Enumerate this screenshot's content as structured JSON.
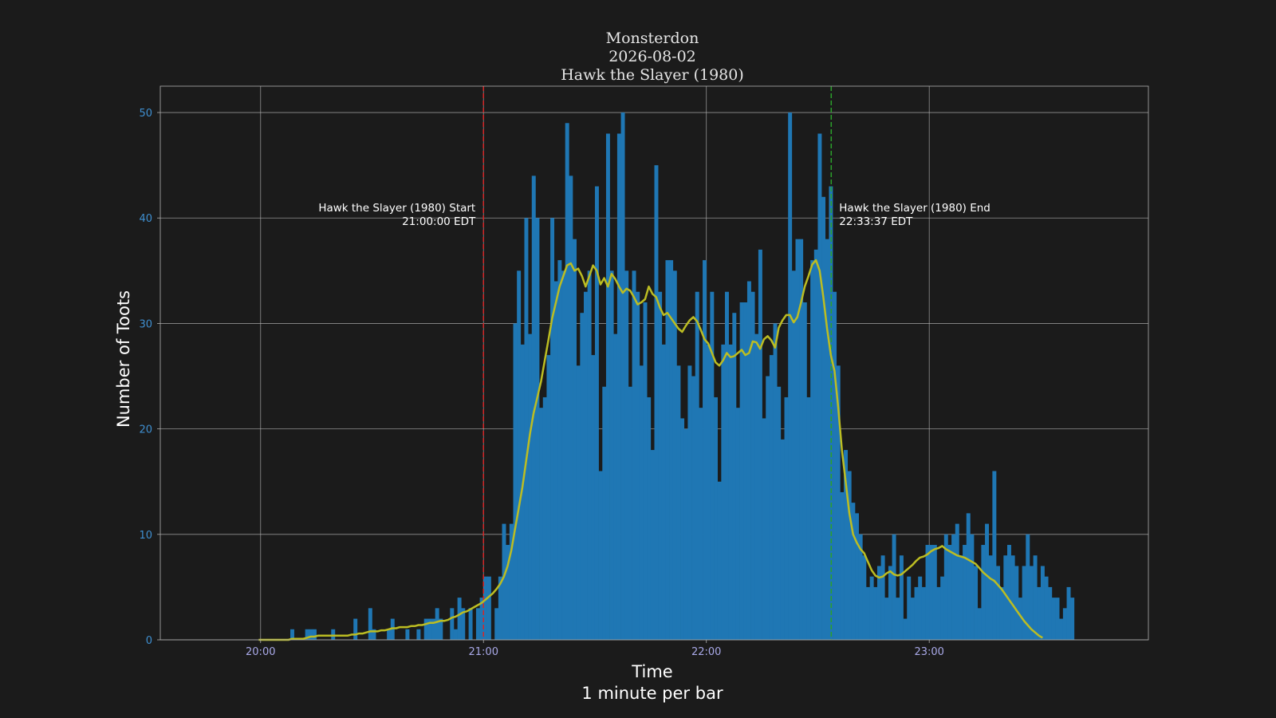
{
  "chart_data": {
    "type": "bar",
    "title": [
      "Monsterdon",
      "2026-08-02",
      "Hawk the Slayer (1980)"
    ],
    "xlabel": [
      "Time",
      "1 minute per bar"
    ],
    "ylabel": "Number of Toots",
    "x_start": "19:59",
    "x_unit": "minute",
    "xlim": [
      "19:33",
      "23:59"
    ],
    "ylim": [
      0,
      52.5
    ],
    "x_ticks": [
      "20:00",
      "21:00",
      "22:00",
      "23:00"
    ],
    "y_ticks": [
      0,
      10,
      20,
      30,
      40,
      50
    ],
    "grid": true,
    "colors": {
      "background": "#1b1b1b",
      "bars": "#1f77b4",
      "smooth_line": "#bcbd22",
      "start_line": "#d62728",
      "end_line": "#2ca02c",
      "grid": "#b0b0b0",
      "ytick_text": "#3f8fd0",
      "xtick_text": "#a9a9e8"
    },
    "values": [
      0,
      0,
      0,
      0,
      0,
      0,
      0,
      0,
      0,
      1,
      0,
      0,
      0,
      1,
      1,
      1,
      0,
      0,
      0,
      0,
      1,
      0,
      0,
      0,
      0,
      0,
      2,
      0,
      0,
      0,
      3,
      1,
      0,
      0,
      0,
      1,
      2,
      0,
      0,
      0,
      1,
      0,
      0,
      1,
      0,
      2,
      2,
      2,
      3,
      2,
      0,
      0,
      3,
      1,
      4,
      3,
      0,
      3,
      0,
      3,
      4,
      6,
      6,
      0,
      3,
      6,
      11,
      9,
      11,
      30,
      35,
      28,
      40,
      29,
      44,
      40,
      22,
      23,
      27,
      40,
      34,
      36,
      35,
      49,
      44,
      38,
      26,
      31,
      33,
      35,
      27,
      43,
      16,
      24,
      48,
      35,
      29,
      48,
      50,
      35,
      24,
      35,
      33,
      26,
      32,
      23,
      18,
      45,
      33,
      28,
      36,
      36,
      35,
      26,
      21,
      20,
      26,
      25,
      33,
      22,
      36,
      28,
      33,
      23,
      15,
      28,
      33,
      28,
      31,
      22,
      32,
      32,
      34,
      33,
      29,
      37,
      21,
      25,
      27,
      30,
      24,
      19,
      23,
      50,
      35,
      38,
      38,
      32,
      23,
      36,
      37,
      48,
      42,
      38,
      43,
      33,
      26,
      14,
      18,
      16,
      13,
      12,
      10,
      8,
      5,
      6,
      5,
      7,
      8,
      4,
      7,
      10,
      4,
      8,
      2,
      6,
      4,
      5,
      6,
      5,
      9,
      9,
      9,
      5,
      6,
      10,
      9,
      10,
      11,
      8,
      9,
      12,
      10,
      7,
      3,
      9,
      11,
      8,
      16,
      7,
      5,
      8,
      9,
      8,
      7,
      4,
      7,
      10,
      7,
      8,
      5,
      7,
      6,
      5,
      4,
      4,
      2,
      3,
      5,
      4,
      0
    ],
    "smooth": [
      0,
      0,
      0,
      0,
      0,
      0,
      0,
      0,
      0,
      0.1,
      0.1,
      0.1,
      0.1,
      0.2,
      0.3,
      0.3,
      0.4,
      0.4,
      0.4,
      0.4,
      0.4,
      0.4,
      0.4,
      0.4,
      0.4,
      0.5,
      0.5,
      0.6,
      0.6,
      0.7,
      0.8,
      0.8,
      0.8,
      0.9,
      0.9,
      1,
      1.1,
      1.1,
      1.2,
      1.2,
      1.2,
      1.3,
      1.3,
      1.4,
      1.4,
      1.5,
      1.6,
      1.6,
      1.7,
      1.8,
      1.8,
      1.9,
      2.1,
      2.2,
      2.4,
      2.6,
      2.7,
      2.9,
      3.1,
      3.3,
      3.5,
      3.8,
      4.1,
      4.4,
      4.8,
      5.3,
      6,
      7,
      8.5,
      10.5,
      12.5,
      14.5,
      17,
      19.5,
      21.5,
      23,
      24.5,
      26.5,
      28.5,
      30.5,
      32,
      33.5,
      34.5,
      35.5,
      35.7,
      35,
      35.2,
      34.5,
      33.5,
      34.5,
      35.5,
      35,
      33.7,
      34.3,
      33.5,
      34.7,
      34.2,
      33.5,
      32.9,
      33.3,
      33.1,
      32.5,
      31.8,
      32,
      32.3,
      33.5,
      32.8,
      32.5,
      31.5,
      30.8,
      31,
      30.5,
      30,
      29.5,
      29.2,
      29.8,
      30.3,
      30.6,
      30.2,
      29.4,
      28.5,
      28.1,
      27.2,
      26.3,
      26,
      26.5,
      27.2,
      26.8,
      26.9,
      27.2,
      27.5,
      27,
      27.2,
      28.3,
      28.2,
      27.6,
      28.5,
      28.8,
      28.4,
      27.7,
      29.6,
      30.3,
      30.8,
      30.8,
      30.1,
      30.6,
      32,
      33.5,
      34.5,
      35.6,
      36,
      35,
      32.5,
      29.5,
      27,
      25.5,
      22,
      18,
      15,
      12,
      10,
      9.2,
      8.6,
      8.2,
      7.4,
      6.6,
      6.1,
      5.9,
      6,
      6.3,
      6.5,
      6.2,
      6.1,
      6.2,
      6.5,
      6.8,
      7.1,
      7.5,
      7.8,
      7.9,
      8.1,
      8.4,
      8.6,
      8.7,
      8.9,
      8.6,
      8.4,
      8.2,
      8,
      7.9,
      7.8,
      7.6,
      7.4,
      7.2,
      6.8,
      6.4,
      6.1,
      5.8,
      5.6,
      5.2,
      4.8,
      4.3,
      3.8,
      3.3,
      2.8,
      2.3,
      1.8,
      1.4,
      1,
      0.7,
      0.4,
      0.2
    ]
  },
  "annotations": {
    "start": {
      "title": "Hawk the Slayer (1980) Start",
      "time": "21:00:00 EDT",
      "at": "21:00:00"
    },
    "end": {
      "title": "Hawk the Slayer (1980) End",
      "time": "22:33:37 EDT",
      "at": "22:33:37"
    }
  }
}
